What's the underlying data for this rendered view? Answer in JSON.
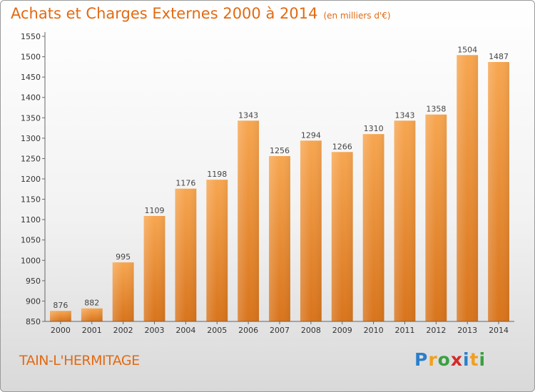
{
  "header": {
    "title": "Achats et Charges Externes 2000 à 2014",
    "unit": "(en milliers d'€)"
  },
  "footer": {
    "city": "TAIN-L'HERMITAGE",
    "logo_letters": [
      "P",
      "r",
      "o",
      "x",
      "i",
      "t",
      "i"
    ],
    "logo_colors": [
      "#2b7fc9",
      "#f0a020",
      "#3aa040",
      "#d42a2a",
      "#2b7fc9",
      "#f0a020",
      "#3aa040"
    ]
  },
  "colors": {
    "title": "#e26a12",
    "bar_top": "#f7a650",
    "bar_bottom": "#d8741c"
  },
  "chart_data": {
    "type": "bar",
    "title": "Achats et Charges Externes 2000 à 2014",
    "subtitle": "(en milliers d'€)",
    "categories": [
      "2000",
      "2001",
      "2002",
      "2003",
      "2004",
      "2005",
      "2006",
      "2007",
      "2008",
      "2009",
      "2010",
      "2011",
      "2012",
      "2013",
      "2014"
    ],
    "values": [
      876,
      882,
      995,
      1109,
      1176,
      1198,
      1343,
      1256,
      1294,
      1266,
      1310,
      1343,
      1358,
      1504,
      1487
    ],
    "ylim": [
      850,
      1550
    ],
    "yticks": [
      850,
      900,
      950,
      1000,
      1050,
      1100,
      1150,
      1200,
      1250,
      1300,
      1350,
      1400,
      1450,
      1500,
      1550
    ],
    "grid": false,
    "legend": "none"
  }
}
